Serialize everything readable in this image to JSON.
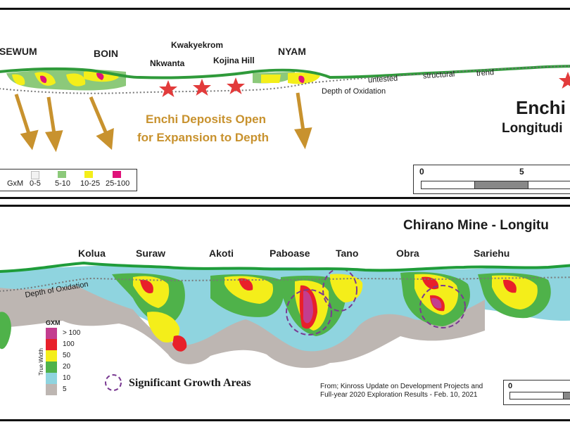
{
  "top_panel": {
    "title_line1": "Enchi",
    "title_line2": "Longitudi",
    "deposits": {
      "sewum": "SEWUM",
      "boin": "BOIN",
      "kwakyekrom": "Kwakyekrom",
      "nkwanta": "Nkwanta",
      "kojina_hill": "Kojina Hill",
      "nyam": "NYAM"
    },
    "trend_words": [
      "untested",
      "structural",
      "trend"
    ],
    "oxidation_label": "Depth of Oxidation",
    "callout_line1": "Enchi Deposits Open",
    "callout_line2": "for Expansion to Depth",
    "legend": {
      "title": "GxM",
      "items": [
        {
          "label": "0-5",
          "color": "#f2f2f2"
        },
        {
          "label": "5-10",
          "color": "#8cc97a"
        },
        {
          "label": "10-25",
          "color": "#f4ee1a"
        },
        {
          "label": "25-100",
          "color": "#e0127a"
        }
      ]
    },
    "scale_ticks": [
      "0",
      "5"
    ],
    "colors": {
      "callout": "#c8922e",
      "arrow": "#c8922e",
      "star": "#e23b3b",
      "surface": "#2f9a3a"
    }
  },
  "bottom_panel": {
    "title": "Chirano Mine - Longitu",
    "deposits": {
      "kolua": "Kolua",
      "suraw": "Suraw",
      "akoti": "Akoti",
      "paboase": "Paboase",
      "tano": "Tano",
      "obra": "Obra",
      "sariehu": "Sariehu"
    },
    "oxidation_label": "Depth of Oxidation",
    "legend": {
      "title": "GXM",
      "axis_label": "True Width",
      "items": [
        {
          "label": "> 100",
          "color": "#c33d8f"
        },
        {
          "label": "100",
          "color": "#e8202a"
        },
        {
          "label": "50",
          "color": "#f4ee1a"
        },
        {
          "label": "20",
          "color": "#4fb24a"
        },
        {
          "label": "10",
          "color": "#8fd4df"
        },
        {
          "label": "5",
          "color": "#bdb6b2"
        }
      ]
    },
    "growth_label": "Significant Growth Areas",
    "source_line1": "From; Kinross Update on Development Projects and",
    "source_line2": "Full-year 2020 Exploration Results - Feb. 10, 2021",
    "scale_ticks": [
      "0"
    ],
    "colors": {
      "surface": "#1f9c3a",
      "growth_circle": "#7a3a92"
    }
  }
}
